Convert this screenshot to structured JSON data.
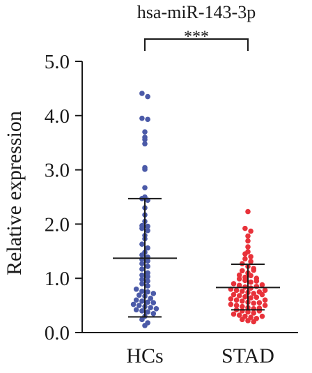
{
  "chart_data": {
    "type": "scatter",
    "title": "hsa-miR-143-3p",
    "ylabel": "Relative expression",
    "xlabel": "",
    "categories": [
      "HCs",
      "STAD"
    ],
    "ylim": [
      0,
      5
    ],
    "yticks": [
      "0.0",
      "1.0",
      "2.0",
      "3.0",
      "4.0",
      "5.0"
    ],
    "significance": "***",
    "colors": {
      "HCs": "#4b5aa8",
      "STAD": "#e8323a",
      "axis": "#1a1a1a"
    },
    "groups": [
      {
        "name": "HCs",
        "mean": 1.37,
        "sd_upper": 2.47,
        "sd_lower": 0.29,
        "values": [
          4.41,
          4.35,
          3.95,
          3.93,
          3.7,
          3.6,
          3.56,
          3.48,
          3.04,
          3.01,
          2.67,
          2.5,
          2.47,
          2.44,
          2.3,
          2.17,
          2.05,
          1.97,
          1.96,
          1.92,
          1.88,
          1.79,
          1.73,
          1.63,
          1.56,
          1.48,
          1.43,
          1.39,
          1.35,
          1.32,
          1.27,
          1.22,
          1.17,
          1.1,
          1.06,
          1.03,
          0.98,
          0.95,
          0.9,
          0.86,
          0.8,
          0.76,
          0.75,
          0.72,
          0.69,
          0.67,
          0.63,
          0.6,
          0.58,
          0.56,
          0.55,
          0.52,
          0.5,
          0.48,
          0.46,
          0.44,
          0.42,
          0.4,
          0.38,
          0.35,
          0.3,
          0.24,
          0.18,
          0.13
        ]
      },
      {
        "name": "STAD",
        "mean": 0.83,
        "sd_upper": 1.26,
        "sd_lower": 0.42,
        "values": [
          2.23,
          1.92,
          1.87,
          1.78,
          1.69,
          1.58,
          1.49,
          1.45,
          1.4,
          1.36,
          1.31,
          1.27,
          1.22,
          1.18,
          1.14,
          1.1,
          1.06,
          1.02,
          0.99,
          0.96,
          0.93,
          0.9,
          0.87,
          0.84,
          0.82,
          0.8,
          0.78,
          0.76,
          0.74,
          0.72,
          0.7,
          0.68,
          0.66,
          0.64,
          0.62,
          0.6,
          0.58,
          0.56,
          0.54,
          0.52,
          0.5,
          0.48,
          0.46,
          0.44,
          0.42,
          0.4,
          0.38,
          0.36,
          0.34,
          0.32,
          0.3,
          0.28,
          0.26,
          0.24,
          0.22,
          0.2,
          0.3,
          0.45,
          0.55,
          0.65,
          0.75,
          0.85,
          0.95,
          1.05,
          1.15,
          0.6,
          0.7,
          0.5,
          0.4,
          0.88,
          1.0,
          0.78
        ]
      }
    ]
  }
}
